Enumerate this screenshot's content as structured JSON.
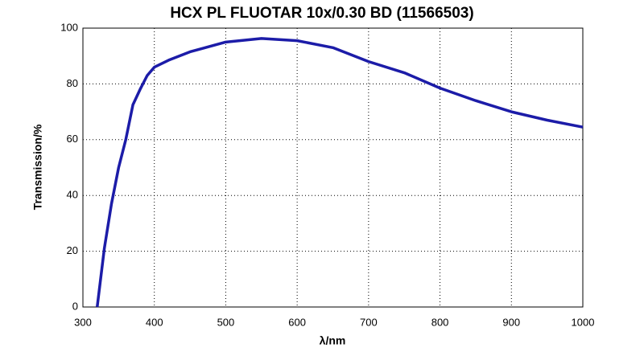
{
  "chart_data": {
    "type": "line",
    "title": "HCX PL FLUOTAR 10x/0.30 BD (11566503)",
    "x_label": "λ/nm",
    "y_label": "Transmission/%",
    "x": [
      320,
      330,
      340,
      350,
      360,
      370,
      380,
      390,
      400,
      420,
      450,
      500,
      550,
      600,
      650,
      700,
      750,
      800,
      850,
      900,
      950,
      1000
    ],
    "series": [
      {
        "name": "Transmission",
        "color": "#1c1ca8",
        "values": [
          0,
          21,
          37,
          50,
          60,
          72.5,
          78,
          83,
          86,
          88.5,
          91.5,
          95,
          96.3,
          95.5,
          93,
          88,
          84,
          78.5,
          74,
          70,
          67,
          64.5
        ]
      }
    ],
    "xlim": [
      300,
      1000
    ],
    "xticks": [
      300,
      400,
      500,
      600,
      700,
      800,
      900,
      1000
    ],
    "ylim": [
      0,
      100
    ],
    "yticks": [
      0,
      20,
      40,
      60,
      80,
      100
    ],
    "grid": true
  }
}
